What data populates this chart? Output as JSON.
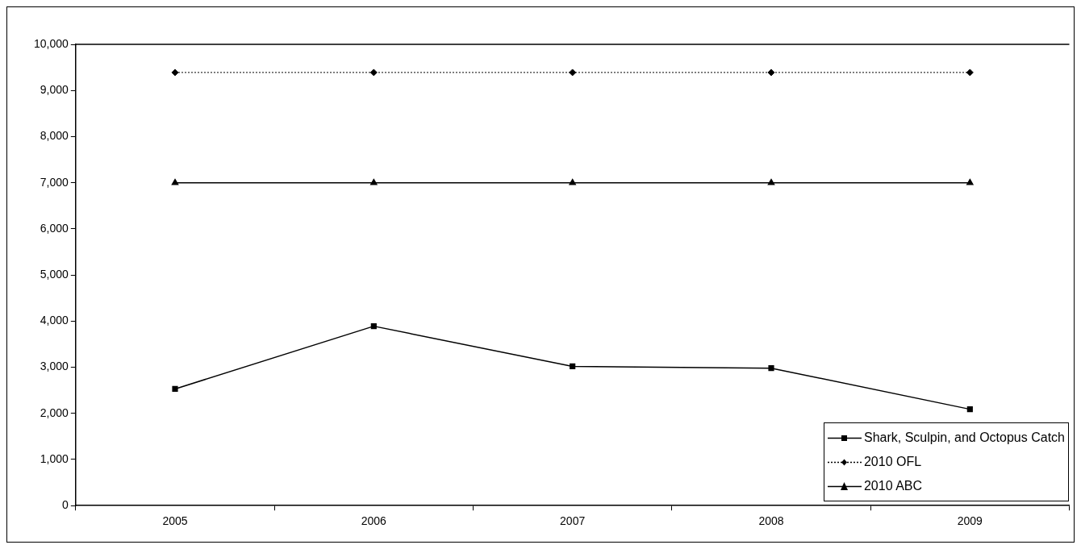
{
  "chart_data": {
    "type": "line",
    "categories": [
      "2005",
      "2006",
      "2007",
      "2008",
      "2009"
    ],
    "series": [
      {
        "name": "Shark, Sculpin, and Octopus Catch",
        "color": "#000000",
        "values": [
          2530,
          3890,
          3020,
          2980,
          2090
        ],
        "marker": "square",
        "line_style": "solid"
      },
      {
        "name": "2010 OFL",
        "color": "#000000",
        "values": [
          9390,
          9390,
          9390,
          9390,
          9390
        ],
        "marker": "diamond",
        "line_style": "dotted"
      },
      {
        "name": "2010 ABC",
        "color": "#000000",
        "values": [
          7000,
          7000,
          7000,
          7000,
          7000
        ],
        "marker": "triangle",
        "line_style": "solid"
      }
    ],
    "ylim": [
      0,
      10000
    ],
    "yticks": [
      {
        "value": 0,
        "label": "0"
      },
      {
        "value": 1000,
        "label": "1,000"
      },
      {
        "value": 2000,
        "label": "2,000"
      },
      {
        "value": 3000,
        "label": "3,000"
      },
      {
        "value": 4000,
        "label": "4,000"
      },
      {
        "value": 5000,
        "label": "5,000"
      },
      {
        "value": 6000,
        "label": "6,000"
      },
      {
        "value": 7000,
        "label": "7,000"
      },
      {
        "value": 8000,
        "label": "8,000"
      },
      {
        "value": 9000,
        "label": "9,000"
      },
      {
        "value": 10000,
        "label": "10,000"
      }
    ],
    "grid": false,
    "legend": "bottom right"
  }
}
